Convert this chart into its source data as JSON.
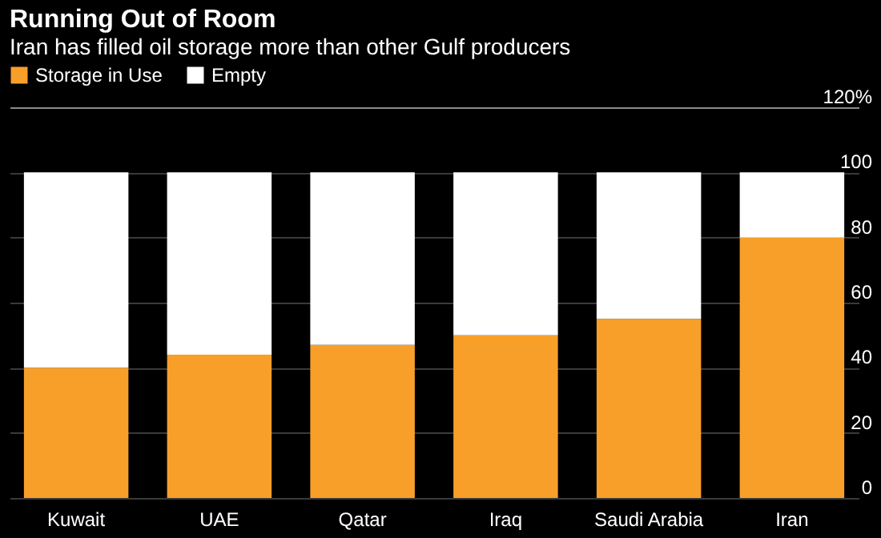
{
  "chart_data": {
    "type": "bar",
    "title": "Running Out of Room",
    "subtitle": "Iran has filled oil storage more than other Gulf producers",
    "categories": [
      "Kuwait",
      "UAE",
      "Qatar",
      "Iraq",
      "Saudi Arabia",
      "Iran"
    ],
    "series": [
      {
        "name": "Storage in Use",
        "color": "#f89f2a",
        "values": [
          40,
          44,
          47,
          50,
          55,
          80
        ]
      },
      {
        "name": "Empty",
        "color": "#ffffff",
        "values": [
          60,
          56,
          53,
          50,
          45,
          20
        ]
      }
    ],
    "stacked": true,
    "ylim": [
      0,
      120
    ],
    "yticks": [
      0,
      20,
      40,
      60,
      80,
      100,
      {
        "value": 120,
        "label": "120%"
      }
    ],
    "grid": "y",
    "legend": "top left"
  }
}
